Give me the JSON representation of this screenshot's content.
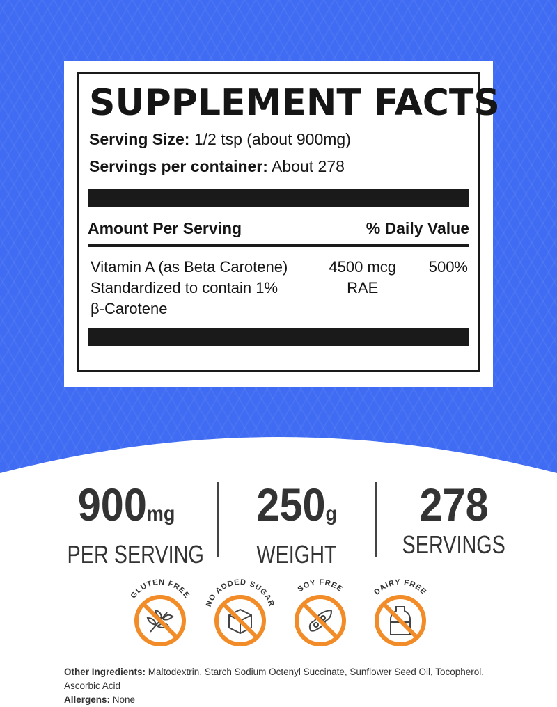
{
  "colors": {
    "background": "#3f6cf2",
    "accent": "#f28c28",
    "text": "#333333"
  },
  "facts": {
    "title": "SUPPLEMENT FACTS",
    "serving_size_label": "Serving Size:",
    "serving_size": "1/2 tsp (about 900mg)",
    "servings_label": "Servings per container:",
    "servings": "About 278",
    "col_amount": "Amount Per Serving",
    "col_dv": "% Daily Value",
    "rows": [
      {
        "name_lines": [
          "Vitamin A (as Beta Carotene)",
          "Standardized to contain 1%",
          "β-Carotene"
        ],
        "amount_lines": [
          "4500 mcg",
          "RAE"
        ],
        "dv": "500%"
      }
    ]
  },
  "stats": [
    {
      "value": "900",
      "unit": "mg",
      "label": "PER SERVING"
    },
    {
      "value": "250",
      "unit": "g",
      "label": "WEIGHT"
    },
    {
      "value": "278",
      "unit": "",
      "label": "SERVINGS"
    }
  ],
  "badges": [
    {
      "label": "GLUTEN FREE",
      "icon": "wheat-icon"
    },
    {
      "label": "NO ADDED SUGAR",
      "icon": "sugar-cube-icon"
    },
    {
      "label": "SOY FREE",
      "icon": "soybean-icon"
    },
    {
      "label": "DAIRY FREE",
      "icon": "milk-bottle-icon"
    }
  ],
  "ingredients": {
    "label": "Other Ingredients:",
    "value": "Maltodextrin, Starch Sodium Octenyl Succinate, Sunflower Seed Oil, Tocopherol, Ascorbic Acid"
  },
  "allergens": {
    "label": "Allergens:",
    "value": "None"
  }
}
